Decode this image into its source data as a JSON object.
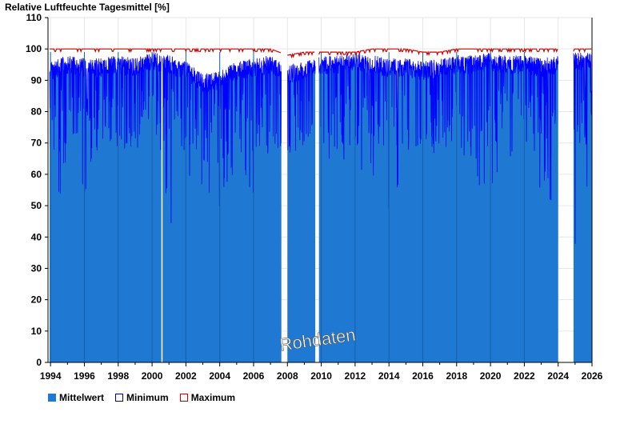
{
  "chart_data": {
    "type": "area",
    "title": "Relative Luftfeuchte Tagesmittel [%]",
    "ylim": [
      0,
      110
    ],
    "yticks": [
      0,
      10,
      20,
      30,
      40,
      50,
      60,
      70,
      80,
      90,
      100,
      110
    ],
    "xlim": [
      1993.85,
      2026.0
    ],
    "xticks": [
      1994,
      1996,
      1998,
      2000,
      2002,
      2004,
      2006,
      2008,
      2010,
      2012,
      2014,
      2016,
      2018,
      2020,
      2022,
      2024,
      2026
    ],
    "xtick_labels": [
      "1994",
      "1996",
      "1998",
      "2000",
      "2002",
      "2004",
      "2006",
      "2008",
      "2010",
      "2012",
      "2014",
      "2016",
      "2018",
      "2020",
      "2022",
      "2024",
      "2026"
    ],
    "watermark": "Rohdaten",
    "colors": {
      "mean": "#1f78d1",
      "minimum": "#0000ff",
      "maximum": "#cc0000",
      "grid": "#e6e6e6"
    },
    "data_gaps": [
      [
        2007.65,
        2008.0
      ],
      [
        2009.65,
        2009.85
      ],
      [
        2024.0,
        2024.9
      ]
    ],
    "series": [
      {
        "name": "Mittelwert",
        "x": [
          1994.0,
          1995.0,
          1996.0,
          1997.0,
          1998.0,
          1999.0,
          2000.0,
          2001.0,
          2002.0,
          2003.0,
          2004.0,
          2005.0,
          2006.0,
          2007.0,
          2008.0,
          2009.0,
          2010.0,
          2011.0,
          2012.0,
          2013.0,
          2014.0,
          2015.0,
          2016.0,
          2017.0,
          2018.0,
          2019.0,
          2020.0,
          2021.0,
          2022.0,
          2023.0,
          2025.0,
          2025.9
        ],
        "values": [
          96,
          98,
          97,
          97,
          98,
          97,
          99,
          98,
          96,
          92,
          93,
          96,
          97,
          98,
          95,
          96,
          98,
          98,
          99,
          98,
          97,
          97,
          96,
          97,
          98,
          98,
          99,
          98,
          98,
          97,
          99,
          99
        ]
      },
      {
        "name": "Minimum",
        "x": [
          1994.0,
          1995.0,
          1996.0,
          1997.0,
          1998.0,
          1999.0,
          2000.0,
          2001.0,
          2002.0,
          2003.0,
          2004.0,
          2005.0,
          2006.0,
          2007.0,
          2008.0,
          2009.0,
          2010.0,
          2011.0,
          2012.0,
          2013.0,
          2014.0,
          2015.0,
          2016.0,
          2017.0,
          2018.0,
          2019.0,
          2020.0,
          2021.0,
          2022.0,
          2023.0,
          2025.0,
          2025.9
        ],
        "values": [
          42,
          60,
          51,
          73,
          65,
          68,
          76,
          43,
          52,
          53,
          48,
          60,
          45,
          70,
          63,
          65,
          60,
          64,
          62,
          56,
          49,
          62,
          68,
          66,
          64,
          60,
          48,
          60,
          56,
          54,
          34,
          61
        ]
      },
      {
        "name": "Maximum",
        "x": [
          1994.0,
          1995.0,
          1996.0,
          1997.0,
          1998.0,
          1999.0,
          2000.0,
          2001.0,
          2002.0,
          2003.0,
          2004.0,
          2005.0,
          2006.0,
          2007.0,
          2008.0,
          2009.0,
          2010.0,
          2011.0,
          2012.0,
          2013.0,
          2014.0,
          2015.0,
          2016.0,
          2017.0,
          2018.0,
          2019.0,
          2020.0,
          2021.0,
          2022.0,
          2023.0,
          2025.0,
          2025.9
        ],
        "values": [
          100,
          100,
          100,
          100,
          100,
          100,
          100,
          100,
          100,
          100,
          100,
          100,
          100,
          100,
          98,
          99,
          99,
          99,
          99,
          100,
          100,
          100,
          99,
          99,
          100,
          100,
          100,
          100,
          100,
          100,
          100,
          100
        ]
      }
    ]
  },
  "legend": {
    "mean_label": "Mittelwert",
    "min_label": "Minimum",
    "max_label": "Maximum"
  }
}
